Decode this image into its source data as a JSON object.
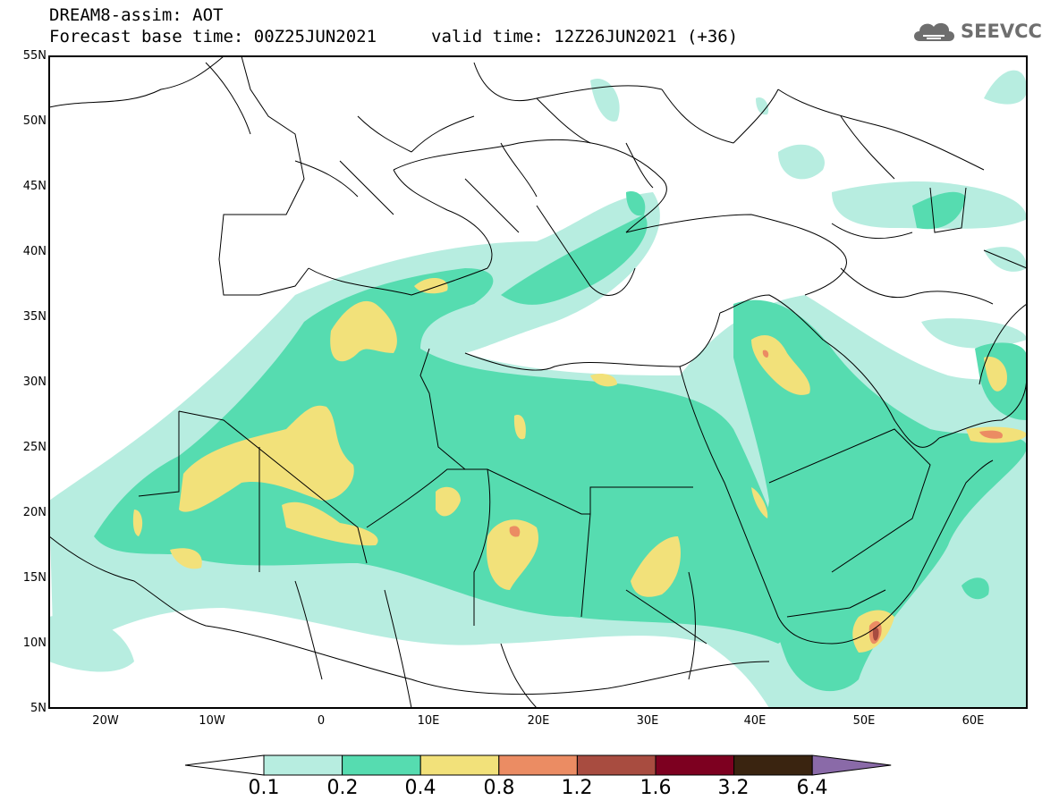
{
  "header": {
    "line1": "DREAM8-assim: AOT",
    "line2_base": "Forecast base time: 00Z25JUN2021",
    "line2_valid": "valid time: 12Z26JUN2021 (+36)",
    "logo_text": "SEEVCCC",
    "logo_icon": "cloud-icon"
  },
  "axes": {
    "lat_ticks": [
      "55N",
      "50N",
      "45N",
      "40N",
      "35N",
      "30N",
      "25N",
      "20N",
      "15N",
      "10N",
      "5N"
    ],
    "lat_values": [
      55,
      50,
      45,
      40,
      35,
      30,
      25,
      20,
      15,
      10,
      5
    ],
    "lon_ticks": [
      "20W",
      "10W",
      "0",
      "10E",
      "20E",
      "30E",
      "40E",
      "50E",
      "60E"
    ],
    "lon_values": [
      -20,
      -10,
      0,
      10,
      20,
      30,
      40,
      50,
      60
    ],
    "lon_range": [
      -25,
      65
    ],
    "lat_range": [
      5,
      55
    ]
  },
  "colorbar": {
    "labels": [
      "0.1",
      "0.2",
      "0.4",
      "0.8",
      "1.2",
      "1.6",
      "3.2",
      "6.4"
    ],
    "colors": [
      "#b7ede0",
      "#56dcb0",
      "#f2e17a",
      "#eb8c63",
      "#a84c40",
      "#7d0020",
      "#3a2410",
      "#8a6aa8"
    ],
    "lower_extend_color": "#ffffff"
  }
}
